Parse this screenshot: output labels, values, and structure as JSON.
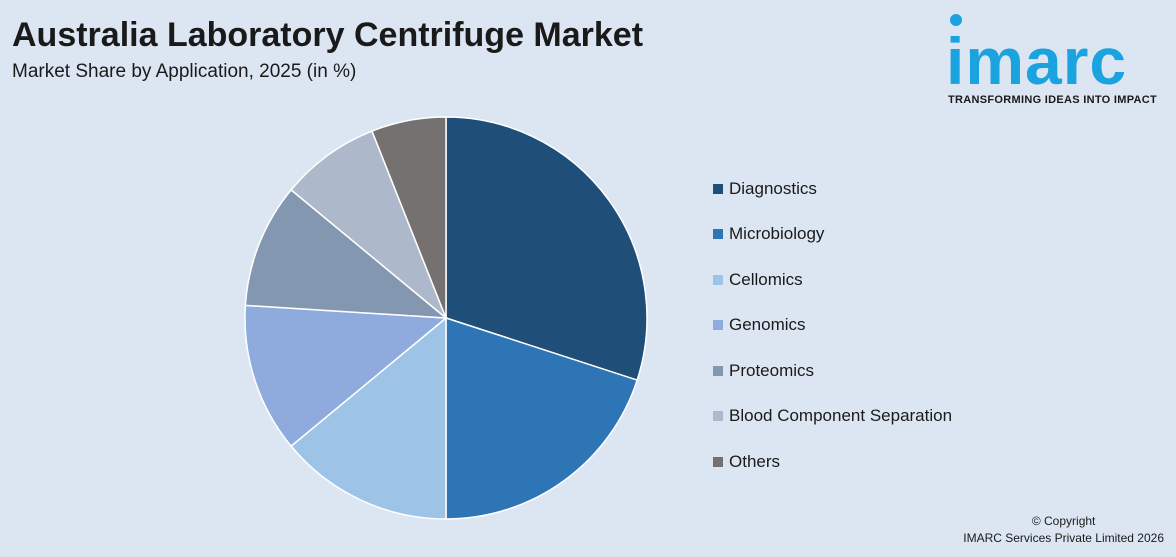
{
  "header": {
    "title": "Australia Laboratory Centrifuge Market",
    "subtitle": "Market Share by Application, 2025 (in %)"
  },
  "logo": {
    "wordmark": "imarc",
    "tagline": "TRANSFORMING IDEAS INTO IMPACT",
    "color": "#1ba3e0"
  },
  "chart_data": {
    "type": "pie",
    "title": "Market Share by Application, 2025 (in %)",
    "legend_position": "right",
    "slices": [
      {
        "label": "Diagnostics",
        "value": 30,
        "color": "#1f4e79"
      },
      {
        "label": "Microbiology",
        "value": 20,
        "color": "#2e75b6"
      },
      {
        "label": "Cellomics",
        "value": 14,
        "color": "#9dc3e6"
      },
      {
        "label": "Genomics",
        "value": 12,
        "color": "#8faadc"
      },
      {
        "label": "Proteomics",
        "value": 10,
        "color": "#8497b0"
      },
      {
        "label": "Blood Component Separation",
        "value": 8,
        "color": "#adb9ca"
      },
      {
        "label": "Others",
        "value": 6,
        "color": "#767171"
      }
    ]
  },
  "footer": {
    "copyright_line1": "© Copyright",
    "copyright_line2": "IMARC Services Private Limited 2026"
  }
}
